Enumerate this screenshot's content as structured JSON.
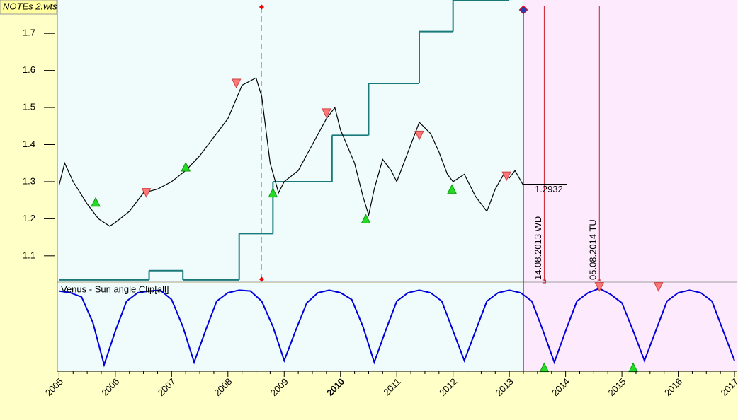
{
  "chart_data": [
    {
      "type": "line",
      "title": "NOTEs 2.wts",
      "xlim": [
        2004.97,
        2017.05
      ],
      "ylim": [
        1.031,
        1.79
      ],
      "yticks": [
        1.1,
        1.2,
        1.3,
        1.4,
        1.5,
        1.6,
        1.7
      ],
      "x": [
        2005.0,
        2005.1,
        2005.25,
        2005.5,
        2005.7,
        2005.9,
        2006.0,
        2006.25,
        2006.5,
        2006.75,
        2007.0,
        2007.25,
        2007.5,
        2007.75,
        2008.0,
        2008.25,
        2008.5,
        2008.6,
        2008.75,
        2008.9,
        2009.0,
        2009.25,
        2009.5,
        2009.75,
        2009.9,
        2010.0,
        2010.25,
        2010.4,
        2010.5,
        2010.6,
        2010.75,
        2010.9,
        2011.0,
        2011.25,
        2011.4,
        2011.6,
        2011.75,
        2011.9,
        2012.0,
        2012.2,
        2012.4,
        2012.6,
        2012.75,
        2012.9,
        2013.0,
        2013.1,
        2013.25
      ],
      "series": [
        {
          "color": "#000000",
          "values": [
            1.29,
            1.35,
            1.3,
            1.24,
            1.2,
            1.18,
            1.19,
            1.22,
            1.27,
            1.28,
            1.3,
            1.33,
            1.37,
            1.42,
            1.47,
            1.56,
            1.58,
            1.53,
            1.35,
            1.27,
            1.3,
            1.33,
            1.4,
            1.47,
            1.5,
            1.44,
            1.35,
            1.26,
            1.21,
            1.28,
            1.36,
            1.33,
            1.3,
            1.4,
            1.46,
            1.43,
            1.38,
            1.32,
            1.3,
            1.32,
            1.26,
            1.22,
            1.28,
            1.32,
            1.31,
            1.33,
            1.29
          ]
        }
      ],
      "step_series": {
        "color": "#1a7a7a",
        "x": [
          2005.0,
          2006.6,
          2007.2,
          2008.2,
          2008.8,
          2009.85,
          2010.5,
          2011.4,
          2012.0,
          2013.0
        ],
        "values": [
          1.035,
          1.06,
          1.035,
          1.16,
          1.3,
          1.425,
          1.565,
          1.705,
          1.79,
          1.79
        ]
      },
      "last_price": {
        "x": 2013.25,
        "value": 1.2932,
        "value_label": "1.2932"
      },
      "up_markers": {
        "x": [
          2005.65,
          2007.25,
          2008.8,
          2010.45,
          2011.98
        ],
        "values": [
          1.245,
          1.34,
          1.27,
          1.2,
          1.28
        ]
      },
      "down_markers": {
        "x": [
          2006.55,
          2008.15,
          2009.75,
          2011.4,
          2012.95
        ],
        "values": [
          1.27,
          1.565,
          1.485,
          1.425,
          1.315
        ]
      },
      "cursor_x": 2008.6,
      "today_x": 2013.25,
      "events": [
        {
          "x": 2013.62,
          "label": "14.08.2013 WD"
        },
        {
          "x": 2014.6,
          "label": "05.08.2014 TU"
        }
      ]
    },
    {
      "type": "line",
      "title": "Venus - Sun angle Clip[all]",
      "xlim": [
        2004.97,
        2017.05
      ],
      "ylim": [
        0,
        1
      ],
      "xticks": [
        2005,
        2006,
        2007,
        2008,
        2009,
        2010,
        2011,
        2012,
        2013,
        2014,
        2015,
        2016,
        2017
      ],
      "highlight_tick": 2010,
      "x": [
        2005.0,
        2005.2,
        2005.4,
        2005.6,
        2005.8,
        2006.0,
        2006.2,
        2006.4,
        2006.6,
        2006.8,
        2007.0,
        2007.2,
        2007.4,
        2007.6,
        2007.8,
        2008.0,
        2008.2,
        2008.4,
        2008.6,
        2008.8,
        2009.0,
        2009.2,
        2009.4,
        2009.6,
        2009.8,
        2010.0,
        2010.2,
        2010.4,
        2010.6,
        2010.8,
        2011.0,
        2011.2,
        2011.4,
        2011.6,
        2011.8,
        2012.0,
        2012.2,
        2012.4,
        2012.6,
        2012.8,
        2013.0,
        2013.2,
        2013.4,
        2013.6,
        2013.8,
        2014.0,
        2014.2,
        2014.4,
        2014.6,
        2014.8,
        2015.0,
        2015.2,
        2015.4,
        2015.6,
        2015.8,
        2016.0,
        2016.2,
        2016.4,
        2016.6,
        2016.8,
        2017.0
      ],
      "series": [
        {
          "color": "#0000dd",
          "values": [
            0.92,
            0.9,
            0.85,
            0.55,
            0.05,
            0.45,
            0.8,
            0.9,
            0.92,
            0.93,
            0.82,
            0.5,
            0.08,
            0.45,
            0.8,
            0.9,
            0.93,
            0.92,
            0.8,
            0.5,
            0.1,
            0.45,
            0.78,
            0.9,
            0.93,
            0.9,
            0.82,
            0.5,
            0.08,
            0.45,
            0.8,
            0.9,
            0.93,
            0.9,
            0.8,
            0.45,
            0.1,
            0.45,
            0.8,
            0.9,
            0.93,
            0.9,
            0.8,
            0.45,
            0.08,
            0.45,
            0.8,
            0.9,
            0.95,
            0.88,
            0.78,
            0.45,
            0.1,
            0.45,
            0.8,
            0.9,
            0.93,
            0.9,
            0.8,
            0.45,
            0.1
          ]
        }
      ],
      "up_markers": {
        "x": [
          2013.62,
          2015.2
        ],
        "values": [
          0.02,
          0.02
        ]
      },
      "down_markers": {
        "x": [
          2014.6,
          2015.65
        ],
        "values": [
          0.97,
          0.97
        ]
      }
    }
  ]
}
